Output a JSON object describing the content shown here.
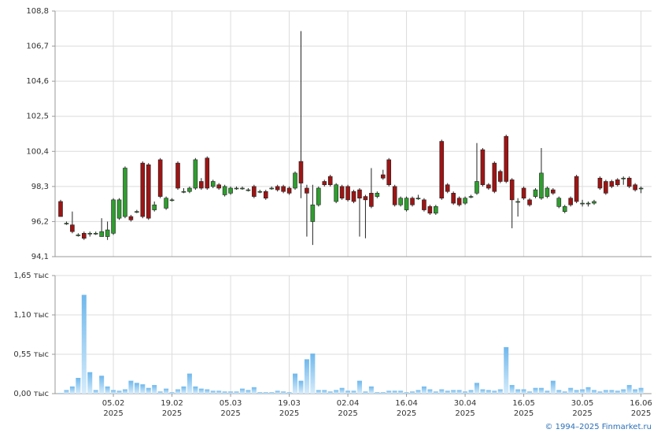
{
  "chart_data": [
    {
      "type": "candlestick",
      "xlim": [
        -0.94,
        100.8
      ],
      "ylim": [
        94.1,
        108.8
      ],
      "yticks": [
        {
          "value": 94.1,
          "label": "94,1"
        },
        {
          "value": 96.2,
          "label": "96,2"
        },
        {
          "value": 98.3,
          "label": "98,3"
        },
        {
          "value": 100.4,
          "label": "100,4"
        },
        {
          "value": 102.5,
          "label": "102,5"
        },
        {
          "value": 104.6,
          "label": "104,6"
        },
        {
          "value": 106.7,
          "label": "106,7"
        },
        {
          "value": 108.8,
          "label": "108,8"
        }
      ],
      "up_color": "#2e9e2e",
      "down_color": "#9e1414",
      "grid": true,
      "open": [
        97.4,
        96.1,
        96.0,
        95.4,
        95.5,
        95.5,
        95.5,
        95.3,
        95.3,
        95.5,
        96.4,
        96.5,
        96.5,
        96.8,
        99.7,
        99.6,
        96.9,
        99.9,
        97.0,
        97.5,
        99.7,
        98.0,
        98.0,
        98.2,
        98.6,
        100.0,
        98.3,
        98.4,
        97.8,
        97.9,
        98.2,
        98.2,
        98.1,
        98.3,
        98.0,
        98.0,
        98.2,
        98.3,
        98.3,
        98.2,
        98.2,
        99.8,
        98.2,
        96.2,
        97.2,
        98.6,
        98.9,
        97.4,
        98.3,
        98.3,
        98.0,
        98.1,
        97.7,
        97.9,
        97.7,
        99.0,
        99.9,
        98.3,
        97.2,
        96.9,
        97.6,
        97.6,
        97.5,
        97.1,
        96.7,
        101.0,
        98.4,
        97.9,
        97.6,
        97.3,
        97.7,
        97.9,
        100.5,
        98.4,
        99.7,
        99.2,
        101.3,
        98.7,
        97.4,
        98.2,
        97.5,
        97.7,
        97.6,
        97.7,
        98.1,
        97.1,
        96.8,
        97.6,
        98.9,
        97.3,
        97.3,
        97.3,
        98.8,
        98.6,
        98.6,
        98.7,
        98.8,
        98.8,
        98.4,
        98.2
      ],
      "high": [
        97.5,
        96.2,
        96.8,
        95.5,
        95.6,
        95.6,
        95.6,
        96.4,
        96.2,
        97.6,
        97.6,
        99.5,
        96.6,
        96.9,
        99.8,
        99.7,
        97.4,
        100.0,
        97.7,
        97.6,
        99.8,
        98.2,
        98.3,
        100.0,
        98.8,
        100.1,
        98.7,
        98.5,
        98.4,
        98.3,
        98.3,
        98.3,
        98.2,
        98.4,
        98.1,
        98.1,
        98.3,
        98.4,
        98.4,
        98.3,
        99.2,
        107.6,
        98.4,
        98.4,
        98.3,
        98.7,
        99.0,
        98.5,
        98.4,
        98.4,
        98.1,
        98.2,
        97.8,
        99.4,
        98.0,
        99.3,
        100.0,
        98.4,
        97.7,
        97.7,
        97.7,
        97.8,
        97.6,
        97.2,
        97.2,
        101.1,
        98.5,
        98.0,
        97.7,
        97.7,
        97.8,
        100.9,
        100.6,
        98.5,
        99.8,
        99.3,
        101.4,
        98.8,
        97.6,
        98.3,
        97.6,
        98.2,
        100.6,
        98.3,
        98.2,
        97.7,
        97.2,
        97.7,
        99.0,
        97.5,
        97.4,
        97.5,
        98.9,
        98.7,
        98.7,
        98.8,
        98.9,
        98.9,
        98.5,
        98.3
      ],
      "low": [
        96.5,
        96.0,
        95.5,
        95.3,
        95.1,
        95.3,
        95.4,
        95.3,
        95.1,
        95.4,
        96.3,
        96.4,
        96.2,
        96.7,
        96.4,
        96.3,
        96.8,
        97.6,
        96.9,
        97.4,
        98.1,
        97.9,
        97.9,
        98.1,
        98.1,
        98.1,
        98.2,
        98.1,
        97.7,
        97.8,
        98.1,
        98.1,
        98.0,
        97.6,
        97.9,
        97.5,
        98.1,
        98.0,
        97.9,
        97.8,
        98.1,
        97.6,
        95.3,
        94.8,
        97.1,
        98.3,
        98.3,
        97.3,
        97.5,
        97.4,
        97.3,
        95.3,
        95.2,
        97.0,
        97.6,
        98.7,
        98.3,
        97.1,
        97.1,
        96.8,
        97.1,
        97.5,
        96.8,
        96.6,
        96.6,
        97.5,
        97.9,
        97.2,
        97.1,
        97.2,
        97.6,
        97.8,
        98.3,
        98.1,
        97.9,
        98.5,
        98.5,
        95.8,
        96.5,
        97.5,
        97.1,
        97.6,
        97.5,
        97.6,
        97.8,
        97.0,
        96.7,
        97.1,
        97.3,
        97.1,
        97.1,
        97.2,
        98.1,
        97.8,
        98.2,
        98.3,
        98.4,
        98.2,
        98.0,
        97.9
      ],
      "close": [
        96.5,
        96.1,
        95.6,
        95.4,
        95.2,
        95.5,
        95.5,
        95.6,
        95.7,
        97.5,
        97.5,
        99.4,
        96.3,
        96.8,
        96.5,
        96.4,
        97.2,
        97.7,
        97.6,
        97.5,
        98.2,
        98.0,
        98.2,
        99.9,
        98.2,
        98.2,
        98.6,
        98.2,
        98.3,
        98.2,
        98.2,
        98.2,
        98.1,
        97.7,
        98.0,
        97.6,
        98.2,
        98.1,
        98.0,
        97.9,
        99.1,
        98.5,
        97.9,
        97.2,
        98.2,
        98.4,
        98.4,
        98.4,
        97.6,
        97.5,
        97.4,
        97.6,
        97.5,
        97.1,
        97.9,
        98.8,
        98.4,
        97.2,
        97.6,
        97.6,
        97.2,
        97.6,
        96.9,
        96.7,
        97.1,
        97.6,
        98.0,
        97.3,
        97.2,
        97.6,
        97.7,
        98.6,
        98.4,
        98.2,
        98.0,
        98.6,
        98.6,
        97.5,
        97.4,
        97.6,
        97.2,
        98.1,
        99.1,
        98.2,
        97.9,
        97.6,
        97.1,
        97.2,
        97.4,
        97.3,
        97.3,
        97.4,
        98.2,
        97.9,
        98.3,
        98.4,
        98.8,
        98.3,
        98.1,
        98.2
      ]
    },
    {
      "type": "bar",
      "xlim": [
        -0.94,
        100.8
      ],
      "ylim": [
        0,
        1.65
      ],
      "yticks": [
        {
          "value": 0,
          "label": "0,00 тыс"
        },
        {
          "value": 0.55,
          "label": "0,55 тыс"
        },
        {
          "value": 1.1,
          "label": "1,10 тыс"
        },
        {
          "value": 1.65,
          "label": "1,65 тыс"
        }
      ],
      "xticks": [
        {
          "value": 9,
          "label": [
            "05.02",
            "2025"
          ]
        },
        {
          "value": 19,
          "label": [
            "19.02",
            "2025"
          ]
        },
        {
          "value": 29,
          "label": [
            "05.03",
            "2025"
          ]
        },
        {
          "value": 39,
          "label": [
            "19.03",
            "2025"
          ]
        },
        {
          "value": 49,
          "label": [
            "02.04",
            "2025"
          ]
        },
        {
          "value": 59,
          "label": [
            "16.04",
            "2025"
          ]
        },
        {
          "value": 69,
          "label": [
            "30.04",
            "2025"
          ]
        },
        {
          "value": 79,
          "label": [
            "16.05",
            "2025"
          ]
        },
        {
          "value": 89,
          "label": [
            "30.05",
            "2025"
          ]
        },
        {
          "value": 99,
          "label": [
            "16.06",
            "2025"
          ]
        }
      ],
      "color": "#8cc8f0",
      "grid": true,
      "values": [
        0.01,
        0.05,
        0.1,
        0.22,
        1.38,
        0.3,
        0.05,
        0.25,
        0.1,
        0.05,
        0.04,
        0.06,
        0.18,
        0.15,
        0.13,
        0.08,
        0.12,
        0.03,
        0.07,
        0.02,
        0.06,
        0.1,
        0.28,
        0.1,
        0.07,
        0.06,
        0.04,
        0.04,
        0.03,
        0.03,
        0.03,
        0.07,
        0.05,
        0.09,
        0.02,
        0.02,
        0.02,
        0.04,
        0.03,
        0.02,
        0.28,
        0.18,
        0.48,
        0.56,
        0.05,
        0.05,
        0.03,
        0.05,
        0.08,
        0.04,
        0.04,
        0.18,
        0.03,
        0.1,
        0.02,
        0.02,
        0.04,
        0.04,
        0.04,
        0.02,
        0.03,
        0.05,
        0.1,
        0.06,
        0.03,
        0.06,
        0.04,
        0.05,
        0.05,
        0.03,
        0.05,
        0.15,
        0.06,
        0.05,
        0.04,
        0.06,
        0.65,
        0.12,
        0.06,
        0.06,
        0.03,
        0.08,
        0.08,
        0.04,
        0.18,
        0.05,
        0.03,
        0.08,
        0.05,
        0.06,
        0.09,
        0.05,
        0.03,
        0.05,
        0.05,
        0.04,
        0.06,
        0.12,
        0.06,
        0.08
      ]
    },
    {
      "footer": "© 1994–2025 Finmarket.ru"
    }
  ]
}
